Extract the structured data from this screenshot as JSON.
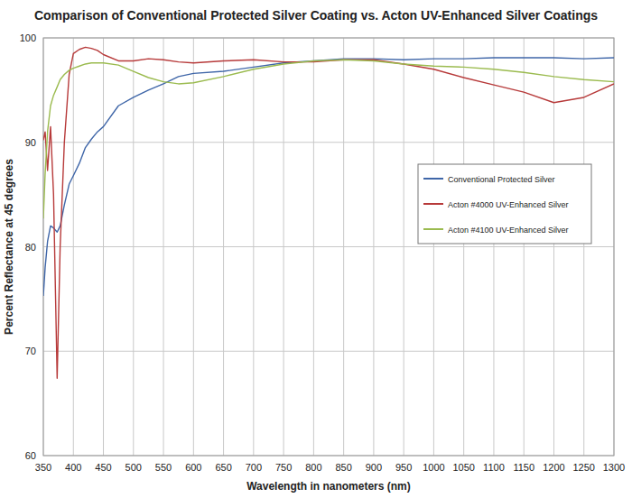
{
  "chart_data": {
    "type": "line",
    "title": "Comparison of Conventional Protected Silver Coating vs. Acton UV-Enhanced Silver Coatings",
    "x_label": "Wavelength in nanometers (nm)",
    "y_label": "Percent Reflectance at 45 degrees",
    "x": [
      350,
      353,
      357,
      362,
      367,
      373,
      378,
      385,
      393,
      400,
      410,
      420,
      430,
      440,
      450,
      475,
      500,
      525,
      550,
      575,
      600,
      650,
      700,
      750,
      800,
      850,
      900,
      950,
      1000,
      1050,
      1100,
      1150,
      1200,
      1250,
      1300
    ],
    "series": [
      {
        "name": "Conventional Protected Silver",
        "color": "#3f66a8",
        "values": [
          75.3,
          78,
          80.5,
          82,
          81.8,
          81.4,
          82,
          84,
          86,
          86.8,
          88,
          89.5,
          90.3,
          91,
          91.5,
          93.5,
          94.3,
          95,
          95.6,
          96.3,
          96.6,
          96.8,
          97.2,
          97.6,
          97.8,
          98.0,
          98.0,
          97.9,
          98.0,
          98.0,
          98.1,
          98.1,
          98.1,
          98.0,
          98.1
        ]
      },
      {
        "name": "Acton #4000  UV-Enhanced Silver",
        "color": "#b73a3a",
        "values": [
          90.2,
          91.0,
          87.3,
          91.5,
          85,
          67.4,
          80,
          90,
          96.5,
          98.5,
          98.9,
          99.1,
          99.0,
          98.8,
          98.4,
          97.8,
          97.8,
          98.0,
          97.9,
          97.7,
          97.6,
          97.8,
          97.9,
          97.7,
          97.7,
          97.9,
          97.9,
          97.5,
          97.0,
          96.2,
          95.5,
          94.8,
          93.8,
          94.3,
          95.6
        ]
      },
      {
        "name": "Acton #4100 UV-Enhanced Silver",
        "color": "#9bbb4f",
        "values": [
          82.7,
          87,
          91,
          93.5,
          94.5,
          95.3,
          96,
          96.5,
          96.9,
          97.1,
          97.3,
          97.5,
          97.6,
          97.6,
          97.6,
          97.4,
          96.8,
          96.2,
          95.8,
          95.6,
          95.7,
          96.3,
          97.0,
          97.5,
          97.8,
          97.9,
          97.8,
          97.5,
          97.3,
          97.2,
          97.0,
          96.7,
          96.3,
          96.0,
          95.8
        ]
      }
    ],
    "xlim": [
      350,
      1300
    ],
    "ylim": [
      60,
      100
    ],
    "xticks": [
      350,
      400,
      450,
      500,
      550,
      600,
      650,
      700,
      750,
      800,
      850,
      900,
      950,
      1000,
      1050,
      1100,
      1150,
      1200,
      1250,
      1300
    ],
    "yticks": [
      60,
      70,
      80,
      90,
      100
    ],
    "grid": true,
    "legend": "right"
  }
}
